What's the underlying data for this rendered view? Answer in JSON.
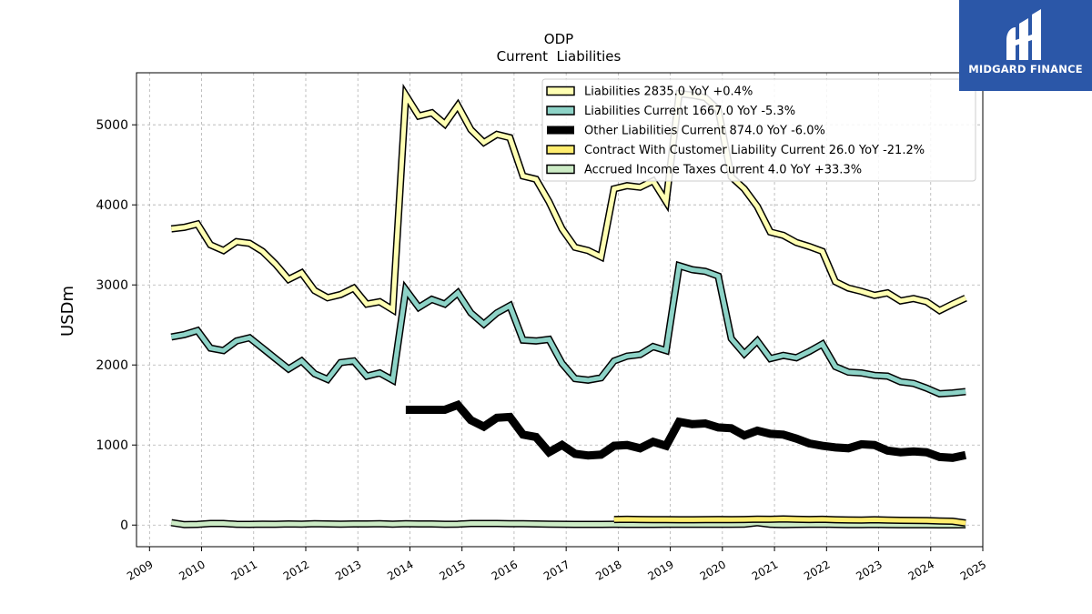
{
  "brand": {
    "name": "MIDGARD FINANCE",
    "bg_color": "#2b57a8",
    "icon": "midgard-logo-icon"
  },
  "chart_data": {
    "type": "line",
    "title": "ODP",
    "subtitle": "Current  Liabilities",
    "ylabel": "USDm",
    "xlabel": "",
    "xlim": [
      2008.75,
      2025.0
    ],
    "ylim": [
      -270,
      5650
    ],
    "grid": true,
    "legend_position": "top-right",
    "x_ticks": [
      2009,
      2010,
      2011,
      2012,
      2013,
      2014,
      2015,
      2016,
      2017,
      2018,
      2019,
      2020,
      2021,
      2022,
      2023,
      2024,
      2025
    ],
    "x_tick_labels": [
      "2009",
      "2010",
      "2011",
      "2012",
      "2013",
      "2014",
      "2015",
      "2016",
      "2017",
      "2018",
      "2019",
      "2020",
      "2021",
      "2022",
      "2023",
      "2024",
      "2025"
    ],
    "y_ticks": [
      0,
      1000,
      2000,
      3000,
      4000,
      5000
    ],
    "y_tick_labels": [
      "0",
      "1000",
      "2000",
      "3000",
      "4000",
      "5000"
    ],
    "series": [
      {
        "name": "Liabilities",
        "legend_label": "Liabilities  2835.0 YoY +0.4%",
        "color": "#ffffb3",
        "width": 5,
        "x": [
          2009.42,
          2009.67,
          2009.92,
          2010.17,
          2010.42,
          2010.67,
          2010.92,
          2011.17,
          2011.42,
          2011.67,
          2011.92,
          2012.17,
          2012.42,
          2012.67,
          2012.92,
          2013.17,
          2013.42,
          2013.67,
          2013.92,
          2014.17,
          2014.42,
          2014.67,
          2014.92,
          2015.17,
          2015.42,
          2015.67,
          2015.92,
          2016.17,
          2016.42,
          2016.67,
          2016.92,
          2017.17,
          2017.42,
          2017.67,
          2017.92,
          2018.17,
          2018.42,
          2018.67,
          2018.92,
          2019.17,
          2019.42,
          2019.67,
          2019.92,
          2020.17,
          2020.42,
          2020.67,
          2020.92,
          2021.17,
          2021.42,
          2021.67,
          2021.92,
          2022.17,
          2022.42,
          2022.67,
          2022.92,
          2023.17,
          2023.42,
          2023.67,
          2023.92,
          2024.17,
          2024.42,
          2024.67
        ],
        "y": [
          3700,
          3720,
          3760,
          3500,
          3430,
          3540,
          3520,
          3420,
          3260,
          3070,
          3150,
          2930,
          2840,
          2880,
          2960,
          2760,
          2790,
          2690,
          5370,
          5110,
          5150,
          5010,
          5240,
          4940,
          4780,
          4880,
          4840,
          4360,
          4320,
          4040,
          3700,
          3470,
          3430,
          3350,
          4200,
          4240,
          4220,
          4300,
          4040,
          5390,
          5370,
          5340,
          5190,
          4350,
          4200,
          3980,
          3660,
          3620,
          3530,
          3480,
          3420,
          3040,
          2960,
          2920,
          2870,
          2900,
          2800,
          2830,
          2790,
          2680,
          2760,
          2835
        ]
      },
      {
        "name": "Liabilities Current",
        "legend_label": "Liabilities Current  1667.0 YoY -5.3%",
        "color": "#8dd3c7",
        "width": 5,
        "x": [
          2009.42,
          2009.67,
          2009.92,
          2010.17,
          2010.42,
          2010.67,
          2010.92,
          2011.17,
          2011.42,
          2011.67,
          2011.92,
          2012.17,
          2012.42,
          2012.67,
          2012.92,
          2013.17,
          2013.42,
          2013.67,
          2013.92,
          2014.17,
          2014.42,
          2014.67,
          2014.92,
          2015.17,
          2015.42,
          2015.67,
          2015.92,
          2016.17,
          2016.42,
          2016.67,
          2016.92,
          2017.17,
          2017.42,
          2017.67,
          2017.92,
          2018.17,
          2018.42,
          2018.67,
          2018.92,
          2019.17,
          2019.42,
          2019.67,
          2019.92,
          2020.17,
          2020.42,
          2020.67,
          2020.92,
          2021.17,
          2021.42,
          2021.67,
          2021.92,
          2022.17,
          2022.42,
          2022.67,
          2022.92,
          2023.17,
          2023.42,
          2023.67,
          2023.92,
          2024.17,
          2024.42,
          2024.67
        ],
        "y": [
          2350,
          2380,
          2430,
          2210,
          2180,
          2300,
          2340,
          2210,
          2080,
          1950,
          2050,
          1890,
          1820,
          2030,
          2050,
          1860,
          1900,
          1810,
          2940,
          2720,
          2820,
          2760,
          2900,
          2650,
          2510,
          2650,
          2740,
          2310,
          2300,
          2320,
          2020,
          1830,
          1810,
          1840,
          2050,
          2110,
          2130,
          2230,
          2180,
          3240,
          3190,
          3170,
          3110,
          2330,
          2140,
          2300,
          2080,
          2120,
          2090,
          2170,
          2260,
          1980,
          1910,
          1900,
          1870,
          1860,
          1790,
          1770,
          1710,
          1640,
          1650,
          1667
        ]
      },
      {
        "name": "Other Liabilities Current",
        "legend_label": "Other Liabilities Current  874.0 YoY -6.0%",
        "color": "#000000",
        "width": 9,
        "x": [
          2013.92,
          2014.17,
          2014.42,
          2014.67,
          2014.92,
          2015.17,
          2015.42,
          2015.67,
          2015.92,
          2016.17,
          2016.42,
          2016.67,
          2016.92,
          2017.17,
          2017.42,
          2017.67,
          2017.92,
          2018.17,
          2018.42,
          2018.67,
          2018.92,
          2019.17,
          2019.42,
          2019.67,
          2019.92,
          2020.17,
          2020.42,
          2020.67,
          2020.92,
          2021.17,
          2021.42,
          2021.67,
          2021.92,
          2022.17,
          2022.42,
          2022.67,
          2022.92,
          2023.17,
          2023.42,
          2023.67,
          2023.92,
          2024.17,
          2024.42,
          2024.67
        ],
        "y": [
          1440,
          1440,
          1440,
          1440,
          1500,
          1310,
          1230,
          1340,
          1350,
          1130,
          1100,
          910,
          1000,
          890,
          870,
          880,
          990,
          1000,
          960,
          1040,
          990,
          1290,
          1260,
          1270,
          1220,
          1210,
          1120,
          1180,
          1140,
          1130,
          1080,
          1020,
          990,
          970,
          960,
          1010,
          1000,
          930,
          910,
          920,
          910,
          850,
          840,
          874
        ]
      },
      {
        "name": "Contract With Customer Liability Current",
        "legend_label": "Contract With Customer Liability Current  26.0 YoY -21.2%",
        "color": "#ffed6f",
        "width": 5,
        "x": [
          2017.92,
          2018.17,
          2018.42,
          2018.67,
          2018.92,
          2019.17,
          2019.42,
          2019.67,
          2019.92,
          2020.17,
          2020.42,
          2020.67,
          2020.92,
          2021.17,
          2021.42,
          2021.67,
          2021.92,
          2022.17,
          2022.42,
          2022.67,
          2022.92,
          2023.17,
          2023.42,
          2023.67,
          2023.92,
          2024.17,
          2024.42,
          2024.67
        ],
        "y": [
          70,
          72,
          70,
          68,
          68,
          66,
          66,
          68,
          70,
          68,
          70,
          74,
          72,
          76,
          72,
          70,
          72,
          66,
          64,
          62,
          66,
          62,
          60,
          58,
          56,
          52,
          48,
          26
        ]
      },
      {
        "name": "Accrued Income Taxes Current",
        "legend_label": "Accrued Income Taxes Current  4.0 YoY +33.3%",
        "color": "#ccebc5",
        "width": 5,
        "x": [
          2009.42,
          2009.67,
          2009.92,
          2010.17,
          2010.42,
          2010.67,
          2010.92,
          2011.17,
          2011.42,
          2011.67,
          2011.92,
          2012.17,
          2012.42,
          2012.67,
          2012.92,
          2013.17,
          2013.42,
          2013.67,
          2013.92,
          2014.17,
          2014.42,
          2014.67,
          2014.92,
          2015.17,
          2015.42,
          2015.67,
          2015.92,
          2016.17,
          2016.42,
          2016.67,
          2016.92,
          2017.17,
          2017.42,
          2017.67,
          2017.92,
          2018.17,
          2018.42,
          2018.67,
          2018.92,
          2019.17,
          2019.42,
          2019.67,
          2019.92,
          2020.17,
          2020.42,
          2020.67,
          2020.92,
          2021.17,
          2021.42,
          2021.67,
          2021.92,
          2022.17,
          2022.42,
          2022.67,
          2022.92,
          2023.17,
          2023.42,
          2023.67,
          2023.92,
          2024.17,
          2024.42,
          2024.67
        ],
        "y": [
          30,
          5,
          8,
          20,
          20,
          10,
          8,
          12,
          10,
          14,
          12,
          16,
          14,
          12,
          14,
          14,
          16,
          12,
          16,
          14,
          14,
          10,
          12,
          20,
          20,
          20,
          18,
          16,
          14,
          12,
          10,
          8,
          8,
          8,
          10,
          8,
          8,
          8,
          10,
          10,
          10,
          10,
          12,
          10,
          12,
          30,
          10,
          5,
          8,
          10,
          12,
          8,
          6,
          6,
          8,
          6,
          4,
          4,
          4,
          3,
          3,
          4
        ]
      }
    ]
  }
}
